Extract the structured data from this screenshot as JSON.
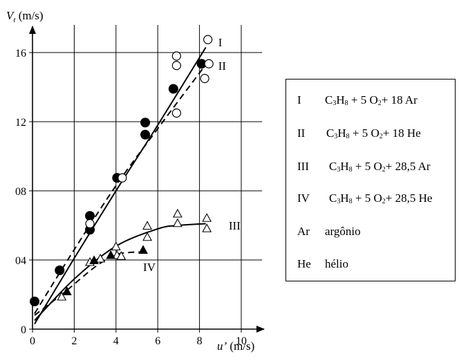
{
  "chart_data": {
    "type": "scatter",
    "title": "",
    "ylabel_main": "V",
    "ylabel_sub": "t",
    "ylabel_unit": " (m/s)",
    "xlabel_main": "u’",
    "xlabel_unit": " (m/s)",
    "xlim": [
      0,
      10
    ],
    "ylim": [
      0,
      18
    ],
    "xticks": [
      0,
      2,
      4,
      6,
      8,
      10
    ],
    "xtick_labels": [
      "0",
      "2",
      "4",
      "6",
      "8",
      "10"
    ],
    "yticks": [
      0,
      4,
      8,
      12,
      16
    ],
    "ytick_labels": [
      "0",
      "04",
      "08",
      "12",
      "16"
    ],
    "grid": true,
    "legend_position": "right",
    "series": [
      {
        "key": "I",
        "marker": "circle-filled",
        "line": "solid",
        "points": [
          [
            0.1,
            1.6
          ],
          [
            1.3,
            3.4
          ],
          [
            2.75,
            6.55
          ],
          [
            2.75,
            5.75
          ],
          [
            4.05,
            8.75
          ],
          [
            5.4,
            11.95
          ],
          [
            5.4,
            11.25
          ],
          [
            6.75,
            13.9
          ],
          [
            8.1,
            15.35
          ]
        ],
        "fit": [
          [
            0.1,
            0.3
          ],
          [
            2,
            4.1
          ],
          [
            4,
            8.0
          ],
          [
            6,
            11.8
          ],
          [
            8.3,
            16.3
          ]
        ]
      },
      {
        "key": "II",
        "marker": "circle-open",
        "line": "dashed",
        "points": [
          [
            2.75,
            6.1
          ],
          [
            4.3,
            8.75
          ],
          [
            6.9,
            15.8
          ],
          [
            6.9,
            15.25
          ],
          [
            6.9,
            12.5
          ],
          [
            8.4,
            16.75
          ],
          [
            8.45,
            15.35
          ],
          [
            8.25,
            14.5
          ]
        ],
        "fit": [
          [
            0.1,
            0.9
          ],
          [
            2,
            4.6
          ],
          [
            4,
            8.3
          ],
          [
            6,
            11.6
          ],
          [
            8.3,
            15.3
          ]
        ]
      },
      {
        "key": "III",
        "marker": "triangle-open",
        "line": "solid",
        "points": [
          [
            1.4,
            1.9
          ],
          [
            2.75,
            3.9
          ],
          [
            3.25,
            4.1
          ],
          [
            4.0,
            4.8
          ],
          [
            4.05,
            4.3
          ],
          [
            4.25,
            4.25
          ],
          [
            5.5,
            6.0
          ],
          [
            5.5,
            5.35
          ],
          [
            6.95,
            6.7
          ],
          [
            6.95,
            6.15
          ],
          [
            8.35,
            6.45
          ],
          [
            8.35,
            5.85
          ]
        ],
        "fit": [
          [
            0.1,
            0.5
          ],
          [
            2,
            2.9
          ],
          [
            4,
            4.8
          ],
          [
            6,
            5.8
          ],
          [
            7,
            6.0
          ],
          [
            8.3,
            6.1
          ]
        ]
      },
      {
        "key": "IV",
        "marker": "triangle-filled",
        "line": "dashed",
        "points": [
          [
            1.65,
            2.2
          ],
          [
            2.95,
            4.0
          ],
          [
            3.75,
            4.3
          ],
          [
            5.3,
            4.6
          ]
        ],
        "fit": [
          [
            0.1,
            0.8
          ],
          [
            1.5,
            2.1
          ],
          [
            3.0,
            3.6
          ],
          [
            4.0,
            4.3
          ],
          [
            4.8,
            4.45
          ],
          [
            5.3,
            4.45
          ]
        ]
      }
    ],
    "curve_labels": [
      {
        "text": "I",
        "x": 8.9,
        "y": 16.6
      },
      {
        "text": "II",
        "x": 8.9,
        "y": 15.25
      },
      {
        "text": "III",
        "x": 9.4,
        "y": 6.0
      },
      {
        "text": "IV",
        "x": 5.3,
        "y": 3.6
      }
    ]
  },
  "legend": {
    "items": [
      {
        "key": "I",
        "parts": [
          "C",
          "3",
          "H",
          "8",
          " + 5 O",
          "2",
          "+ 18 Ar"
        ]
      },
      {
        "key": "II",
        "parts": [
          "C",
          "3",
          "H",
          "8",
          " + 5 O",
          "2",
          "+ 18 He"
        ]
      },
      {
        "key": "III",
        "parts": [
          "C",
          "3",
          "H",
          "8",
          " + 5 O",
          "2",
          "+ 28,5 Ar"
        ]
      },
      {
        "key": "IV",
        "parts": [
          "C",
          "3",
          "H",
          "8",
          " + 5 O",
          "2",
          "+ 28,5 He"
        ]
      },
      {
        "key": "Ar",
        "parts": [
          "argônio"
        ]
      },
      {
        "key": "He",
        "parts": [
          "hélio"
        ]
      }
    ]
  }
}
